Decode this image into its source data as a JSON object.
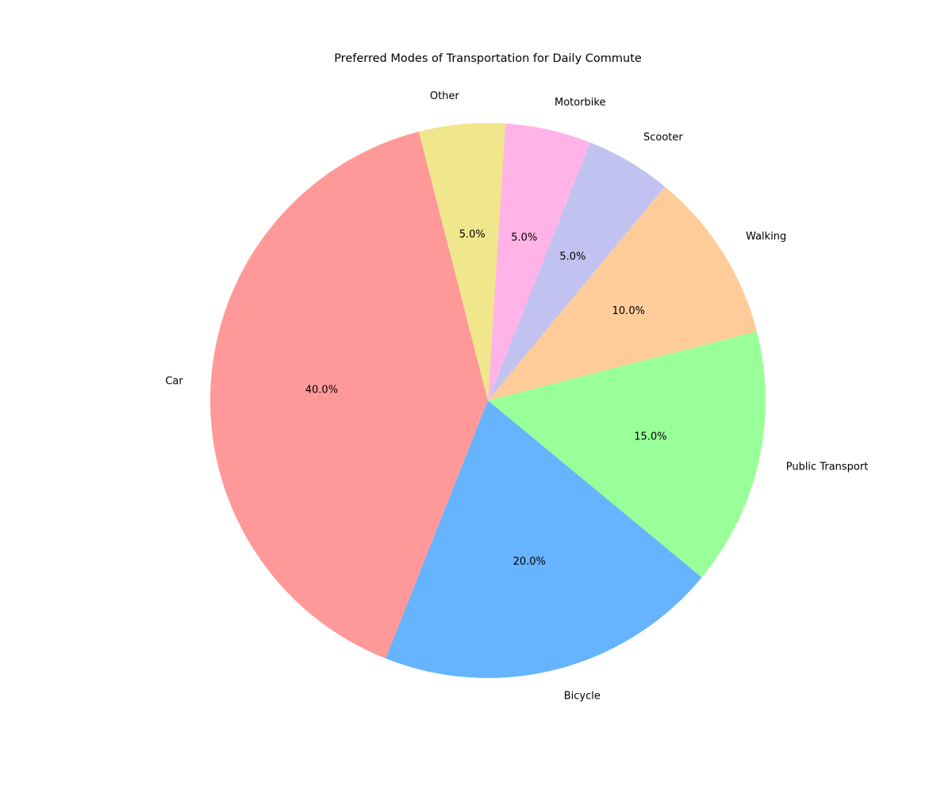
{
  "chart_data": {
    "type": "pie",
    "title": "Preferred Modes of Transportation for Daily Commute",
    "slices": [
      {
        "label": "Car",
        "value": 40.0,
        "pct_label": "40.0%",
        "color": "#ff9999"
      },
      {
        "label": "Bicycle",
        "value": 20.0,
        "pct_label": "20.0%",
        "color": "#66b3ff"
      },
      {
        "label": "Public Transport",
        "value": 15.0,
        "pct_label": "15.0%",
        "color": "#99ff99"
      },
      {
        "label": "Walking",
        "value": 10.0,
        "pct_label": "10.0%",
        "color": "#ffcc99"
      },
      {
        "label": "Scooter",
        "value": 5.0,
        "pct_label": "5.0%",
        "color": "#c2c2f0"
      },
      {
        "label": "Motorbike",
        "value": 5.0,
        "pct_label": "5.0%",
        "color": "#ffb3e6"
      },
      {
        "label": "Other",
        "value": 5.0,
        "pct_label": "5.0%",
        "color": "#f0e68c"
      }
    ]
  }
}
